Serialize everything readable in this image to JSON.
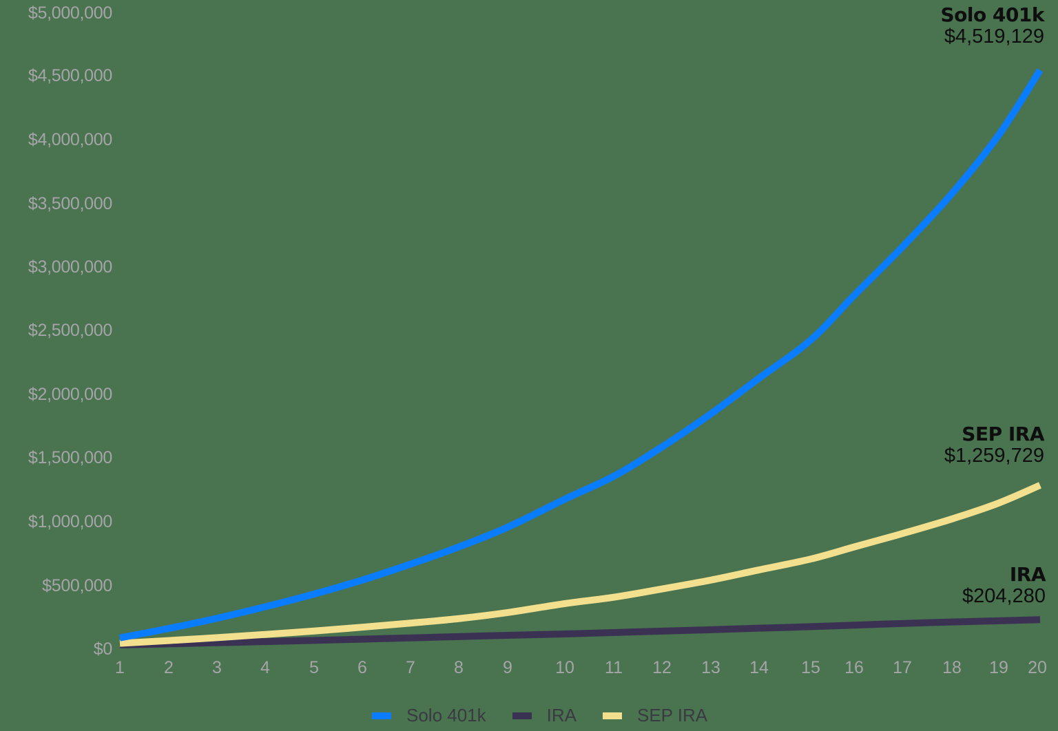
{
  "chart_data": {
    "type": "line",
    "title": "",
    "xlabel": "",
    "ylabel": "",
    "x": [
      1,
      2,
      3,
      4,
      5,
      6,
      7,
      8,
      9,
      10,
      11,
      12,
      13,
      14,
      15,
      16,
      17,
      18,
      19,
      20
    ],
    "x_tick_labels": [
      "1",
      "2",
      "3",
      "4",
      "5",
      "6",
      "7",
      "8",
      "9",
      "10",
      "11",
      "12",
      "13",
      "14",
      "15",
      "16",
      "17",
      "18",
      "19",
      "20"
    ],
    "y_tick_labels": [
      "$0",
      "$500,000",
      "$1,000,000",
      "$1,500,000",
      "$2,000,000",
      "$2,500,000",
      "$3,000,000",
      "$3,500,000",
      "$4,000,000",
      "$4,500,000",
      "$5,000,000"
    ],
    "ylim": [
      0,
      5000000
    ],
    "grid": false,
    "legend_position": "bottom",
    "series": [
      {
        "name": "Solo 401k",
        "color": "#0a7cff",
        "values": [
          61000,
          135000,
          215000,
          305000,
          405000,
          515000,
          640000,
          775000,
          930000,
          1150000,
          1330000,
          1560000,
          1820000,
          2100000,
          2400000,
          2750000,
          3130000,
          3550000,
          4010000,
          4519129
        ],
        "end_label": "Solo 401k",
        "end_value": "$4,519,129"
      },
      {
        "name": "IRA",
        "color": "#3b3253",
        "values": [
          6000,
          14000,
          23000,
          32000,
          41000,
          51000,
          61000,
          71000,
          81000,
          92000,
          103000,
          114000,
          125000,
          137000,
          149000,
          161000,
          174000,
          186000,
          195000,
          204280
        ],
        "end_label": "IRA",
        "end_value": "$204,280"
      },
      {
        "name": "SEP IRA",
        "color": "#f2e08f",
        "values": [
          18000,
          40000,
          63000,
          88000,
          115000,
          145000,
          177000,
          212000,
          260000,
          330000,
          380000,
          445000,
          515000,
          595000,
          680000,
          775000,
          880000,
          995000,
          1120000,
          1259729
        ],
        "end_label": "SEP IRA",
        "end_value": "$1,259,729"
      }
    ],
    "annotations": [
      {
        "text": "Solo 401k",
        "value": "$4,519,129"
      },
      {
        "text": "SEP IRA",
        "value": "$1,259,729"
      },
      {
        "text": "IRA",
        "value": "$204,280"
      }
    ]
  },
  "legend": {
    "items": [
      {
        "label": "Solo 401k",
        "color": "#0a7cff"
      },
      {
        "label": "IRA",
        "color": "#3b3253"
      },
      {
        "label": "SEP IRA",
        "color": "#f2e08f"
      }
    ]
  }
}
